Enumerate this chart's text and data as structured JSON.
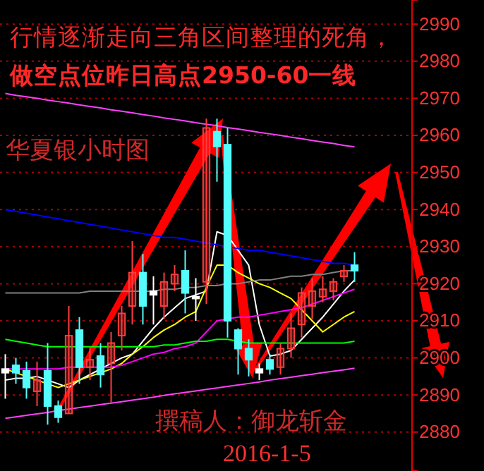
{
  "chart_data": {
    "type": "candlestick",
    "title": "行情逐渐走向三角区间整理的死角，",
    "subtitle": "做空点位昨日高点2950-60一线",
    "annotations": [
      "华夏银小时图",
      "撰稿人：御龙斩金",
      "2016-1-5"
    ],
    "categories": [
      null,
      null,
      null,
      null,
      null,
      null,
      null,
      null,
      null,
      null,
      null,
      null,
      null,
      null,
      null,
      null,
      null,
      null,
      null,
      null,
      null,
      null,
      null,
      null,
      null,
      null,
      null,
      null,
      null,
      null,
      null,
      null,
      null,
      null
    ],
    "ohlc": [
      [
        2897,
        2901,
        2889,
        2896
      ],
      [
        2898,
        2900,
        2893,
        2896
      ],
      [
        2896.5,
        2899,
        2889,
        2892
      ],
      [
        2891,
        2899,
        2887,
        2894
      ],
      [
        2896.5,
        2904,
        2882,
        2887
      ],
      [
        2887,
        2888.5,
        2882.5,
        2884
      ],
      [
        2885,
        2914,
        2885,
        2906
      ],
      [
        2907.5,
        2911,
        2893,
        2897.5
      ],
      [
        2897.5,
        2903,
        2894,
        2899.5
      ],
      [
        2900.5,
        2904,
        2892,
        2895.5
      ],
      [
        2898.5,
        2907,
        2888,
        2904
      ],
      [
        2906,
        2914,
        2902,
        2912
      ],
      [
        2914,
        2931.5,
        2909,
        2923
      ],
      [
        2923,
        2928,
        2909,
        2914
      ],
      [
        2918,
        2922,
        2909,
        2917
      ],
      [
        2914,
        2923,
        2910.5,
        2920.5
      ],
      [
        2920,
        2925,
        2918,
        2922.5
      ],
      [
        2923.5,
        2929,
        2912,
        2917.5
      ],
      [
        2916.5,
        2921.5,
        2910,
        2916
      ],
      [
        2920.5,
        2964.5,
        2914.5,
        2962
      ],
      [
        2961,
        2964.5,
        2947.5,
        2957
      ],
      [
        2957.5,
        2962,
        2905.5,
        2910
      ],
      [
        2907.5,
        2908,
        2895.5,
        2902.5
      ],
      [
        2902.5,
        2905,
        2895,
        2899.5
      ],
      [
        2897,
        2898.5,
        2894,
        2896
      ],
      [
        2899.5,
        2901,
        2895.5,
        2897
      ],
      [
        2897.5,
        2904,
        2895.5,
        2902.5
      ],
      [
        2902.5,
        2912,
        2900,
        2908
      ],
      [
        2909,
        2919,
        2905.5,
        2917.5
      ],
      [
        2914,
        2921.5,
        2910.5,
        2918
      ],
      [
        2916.5,
        2922,
        2915,
        2918.5
      ],
      [
        2918,
        2921.5,
        2915.5,
        2920.5
      ],
      [
        2922,
        2925,
        2920.5,
        2923.5
      ],
      [
        2925,
        2928.5,
        2920.5,
        2923.5
      ]
    ],
    "colors": [
      "#ffffff",
      "#54fcfc",
      "#54fcfc",
      "#ff3c3c",
      "#54fcfc",
      "#54fcfc",
      "#ff3c3c",
      "#54fcfc",
      "#ff3c3c",
      "#54fcfc",
      "#ff3c3c",
      "#ff3c3c",
      "#ff3c3c",
      "#54fcfc",
      "#ffffff",
      "#ff3c3c",
      "#ff3c3c",
      "#54fcfc",
      "#ffffff",
      "#ff3c3c",
      "#54fcfc",
      "#54fcfc",
      "#54fcfc",
      "#54fcfc",
      "#ffffff",
      "#54fcfc",
      "#ff3c3c",
      "#ff3c3c",
      "#ff3c3c",
      "#ff3c3c",
      "#ff3c3c",
      "#ff3c3c",
      "#ff3c3c",
      "#54fcfc"
    ],
    "series": [
      {
        "type": "line",
        "color": "#ffffff",
        "values": [
          2894,
          2894.5,
          2894.5,
          2895,
          2894,
          2893,
          2892,
          2894,
          2895.5,
          2897,
          2898.5,
          2900,
          2901,
          2904.5,
          2908,
          2911,
          2913.5,
          2916,
          2917,
          2918,
          2934,
          2933,
          2929,
          2925,
          2909,
          2900.5,
          2901,
          2902,
          2905,
          2908,
          2911,
          2914.5,
          2918,
          2921
        ]
      },
      {
        "type": "line",
        "color": "#ffff00",
        "values": [
          2897,
          2896,
          2895,
          2894,
          2893,
          2892,
          2893,
          2894,
          2895,
          2896,
          2897,
          2898.5,
          2901,
          2903,
          2905.5,
          2907.5,
          2909,
          2911,
          2912.5,
          2919,
          2925,
          2925,
          2923,
          2921.5,
          2920,
          2919,
          2917.5,
          2916,
          2913,
          2910,
          2907,
          2909,
          2911,
          2912.5
        ]
      },
      {
        "type": "line",
        "color": "#ff00ff",
        "values": [
          2897,
          2897,
          2897,
          2897,
          2897,
          2897,
          2897.5,
          2897.5,
          2897.5,
          2897.5,
          2897.5,
          2898,
          2899,
          2900,
          2901,
          2901.5,
          2902.5,
          2903,
          2904,
          2907,
          2910,
          2910.5,
          2911,
          2911,
          2911.5,
          2912,
          2912.5,
          2913,
          2913.5,
          2914.5,
          2915.5,
          2916.5,
          2917.5,
          2918.5
        ]
      },
      {
        "type": "line",
        "color": "#00ff00",
        "values": [
          2905,
          2904.5,
          2904,
          2903.5,
          2903,
          2903,
          2903,
          2903,
          2903,
          2903,
          2903,
          2903,
          2903,
          2903,
          2903,
          2903.5,
          2903.5,
          2904,
          2904.5,
          2904.5,
          2905,
          2905,
          2904.5,
          2904,
          2904,
          2904,
          2904,
          2904,
          2904,
          2904,
          2904,
          2904,
          2904,
          2904.5
        ]
      },
      {
        "type": "line",
        "color": "#808080",
        "values": [
          2917.5,
          2917.5,
          2917.5,
          2917.5,
          2917.5,
          2917.5,
          2917.5,
          2917.5,
          2918,
          2918,
          2918,
          2918,
          2918,
          2918,
          2918,
          2918.5,
          2918.5,
          2919,
          2919,
          2919.5,
          2919.5,
          2920,
          2920,
          2920.5,
          2921,
          2921,
          2921.5,
          2922,
          2922,
          2922.5,
          2922.5,
          2923,
          2923.5,
          2923.5
        ]
      },
      {
        "type": "line",
        "color": "#0000ff",
        "values": [
          2940,
          2939.5,
          2939,
          2938.5,
          2938,
          2937.5,
          2937,
          2936.5,
          2936,
          2935.5,
          2935,
          2934.5,
          2934,
          2933.5,
          2933,
          2932.5,
          2932.5,
          2932,
          2931.5,
          2931,
          2930.5,
          2930,
          2929.5,
          2929,
          2929,
          2928.5,
          2928,
          2927.5,
          2927,
          2926.5,
          2926,
          2925.5,
          2925.5,
          2925
        ]
      },
      {
        "type": "line",
        "color": "#ff40ff",
        "values": [
          2971.3,
          2970.8,
          2970.4,
          2970.0,
          2969.5,
          2969.1,
          2968.7,
          2968.2,
          2967.8,
          2967.4,
          2966.9,
          2966.5,
          2966.1,
          2965.6,
          2965.2,
          2964.7,
          2964.3,
          2963.9,
          2963.4,
          2963.0,
          2962.6,
          2962.1,
          2961.7,
          2961.3,
          2960.8,
          2960.4,
          2960.0,
          2959.5,
          2959.1,
          2958.6,
          2958.2,
          2957.8,
          2957.3,
          2956.9
        ]
      },
      {
        "type": "line",
        "color": "#ff40ff",
        "values": [
          2883.7,
          2884.1,
          2884.5,
          2884.9,
          2885.3,
          2885.8,
          2886.2,
          2886.6,
          2887.0,
          2887.4,
          2887.8,
          2888.2,
          2888.6,
          2889.0,
          2889.4,
          2889.9,
          2890.3,
          2890.7,
          2891.1,
          2891.5,
          2891.9,
          2892.3,
          2892.7,
          2893.1,
          2893.5,
          2894.0,
          2894.4,
          2894.8,
          2895.2,
          2895.6,
          2896.0,
          2896.4,
          2896.8,
          2897.2
        ]
      }
    ],
    "ylim": [
      2869.5,
      2996.5
    ],
    "yticks": [
      2880,
      2890,
      2900,
      2910,
      2920,
      2930,
      2940,
      2950,
      2960,
      2970,
      2980,
      2990
    ],
    "grid": "y",
    "tick_labels": "y"
  }
}
